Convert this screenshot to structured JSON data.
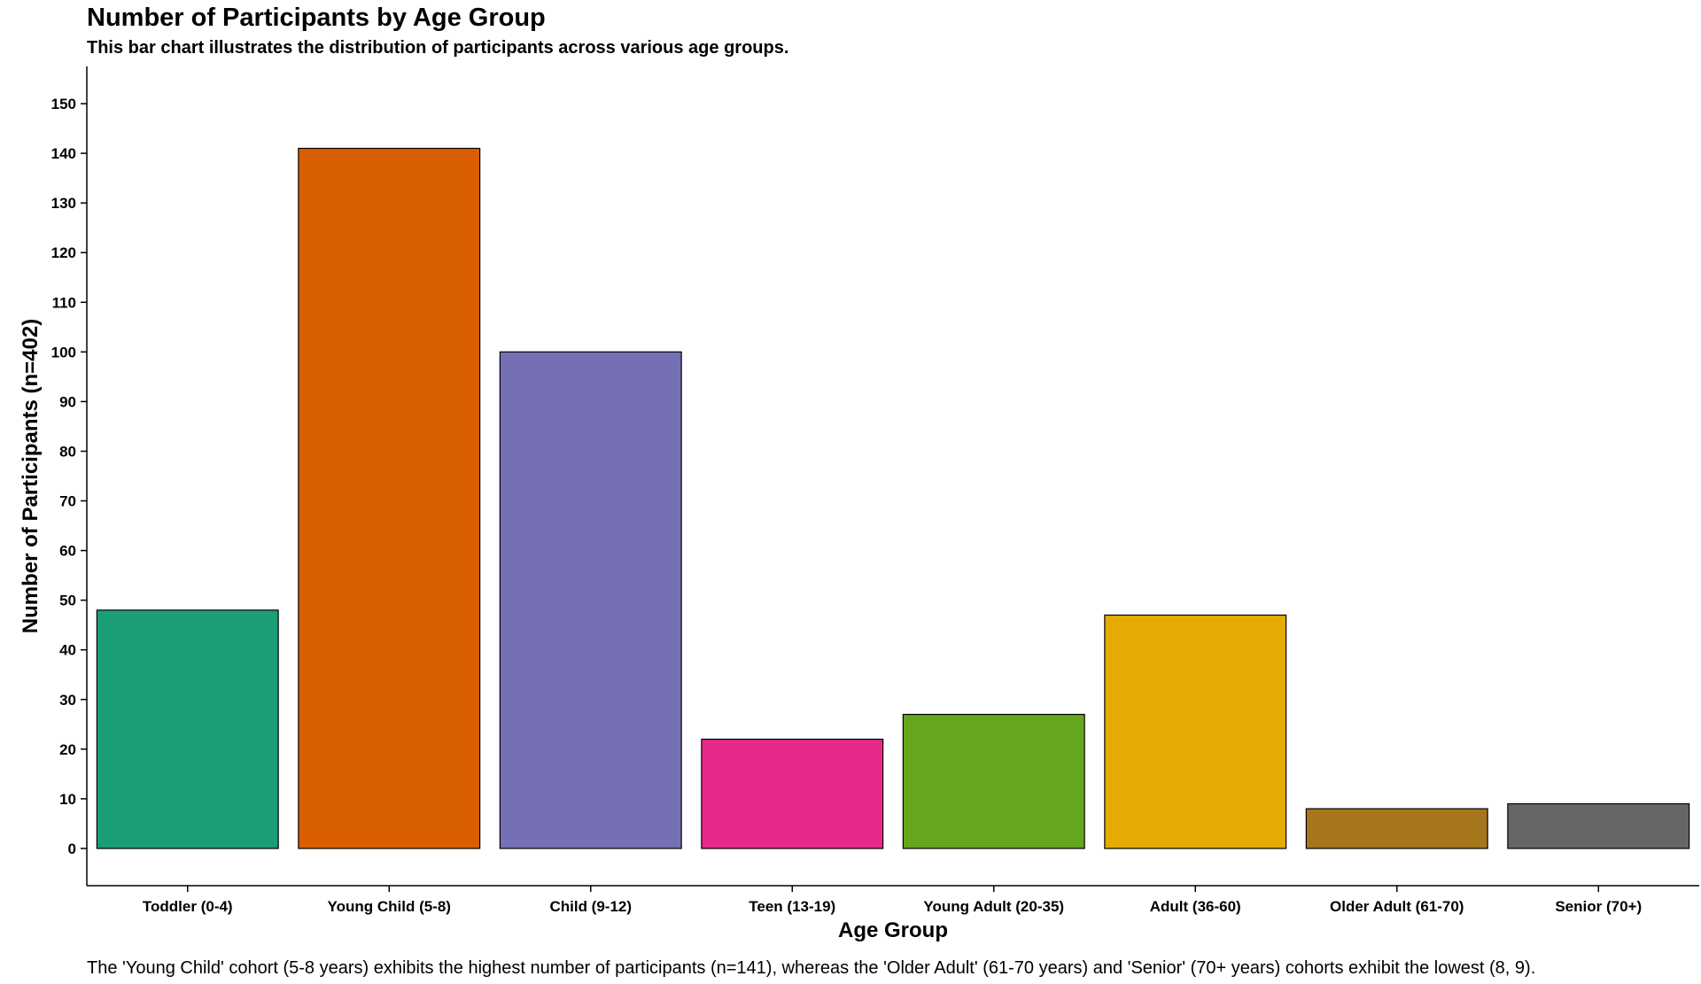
{
  "chart_data": {
    "type": "bar",
    "title": "Number of Participants by Age Group",
    "subtitle": "This bar chart illustrates the distribution of participants across various age groups.",
    "xlabel": "Age Group",
    "ylabel": "Number of Participants (n=402)",
    "categories": [
      "Toddler (0-4)",
      "Young Child (5-8)",
      "Child (9-12)",
      "Teen (13-19)",
      "Young Adult (20-35)",
      "Adult (36-60)",
      "Older Adult (61-70)",
      "Senior (70+)"
    ],
    "values": [
      48,
      141,
      100,
      22,
      27,
      47,
      8,
      9
    ],
    "colors": [
      "#1b9e77",
      "#d95f02",
      "#7570b3",
      "#e7298a",
      "#66a61e",
      "#e6ab02",
      "#a6761d",
      "#666666"
    ],
    "ylim": [
      -7.5,
      157.5
    ],
    "yticks": [
      0,
      10,
      20,
      30,
      40,
      50,
      60,
      70,
      80,
      90,
      100,
      110,
      120,
      130,
      140,
      150
    ],
    "grid": false,
    "legend": "none",
    "caption": "The 'Young Child' cohort (5-8 years) exhibits the highest number of participants (n=141), whereas the 'Older Adult' (61-70 years) and 'Senior' (70+ years) cohorts exhibit the lowest (8, 9)."
  }
}
